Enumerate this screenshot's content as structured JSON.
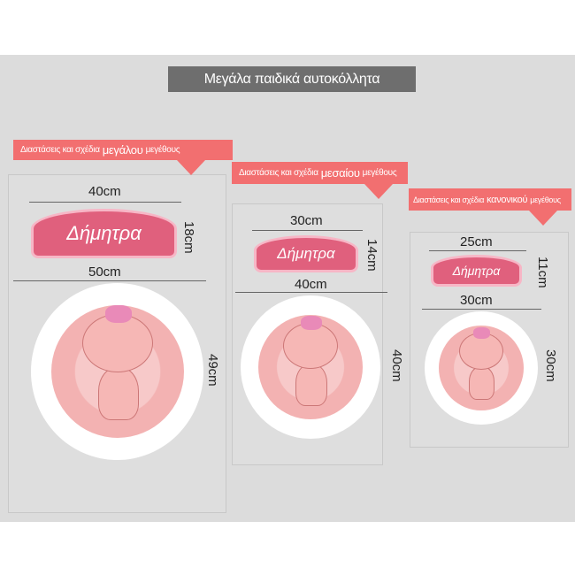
{
  "title": "Μεγάλα παιδικά αυτοκόλλητα",
  "name_text": "Δήμητρα",
  "colors": {
    "banner": "#f26f70",
    "title_bg": "#6e6e6e",
    "name_banner": "#e0607d"
  },
  "sizes": [
    {
      "banner_pre": "Διαστάσεις και σχέδια",
      "banner_size": "μεγάλου",
      "banner_post": "μεγέθους",
      "name_width": "40cm",
      "name_height": "18cm",
      "sticker_width": "50cm",
      "sticker_height": "49cm"
    },
    {
      "banner_pre": "Διαστάσεις και σχέδια",
      "banner_size": "μεσαίου",
      "banner_post": "μεγέθους",
      "name_width": "30cm",
      "name_height": "14cm",
      "sticker_width": "40cm",
      "sticker_height": "40cm"
    },
    {
      "banner_pre": "Διαστάσεις και σχέδια",
      "banner_size": "κανονικού",
      "banner_post": "μεγέθους",
      "name_width": "25cm",
      "name_height": "11cm",
      "sticker_width": "30cm",
      "sticker_height": "30cm"
    }
  ]
}
